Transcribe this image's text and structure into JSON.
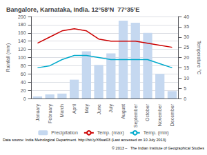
{
  "chart_data": {
    "type": "bar",
    "title": "Bangalore, Karnataka, India. 12°58’N  77°35’E",
    "categories": [
      "January",
      "February",
      "March",
      "April",
      "May",
      "June",
      "July",
      "August",
      "September",
      "October",
      "November",
      "December"
    ],
    "series": [
      {
        "name": "Precipitation",
        "type": "bar",
        "color": "#c5d8f0",
        "values": [
          5,
          10,
          12,
          46,
          115,
          82,
          110,
          190,
          185,
          160,
          60,
          18
        ]
      },
      {
        "name": "Temp. (max)",
        "type": "line",
        "axis": "y2",
        "color": "#cc0000",
        "values": [
          27,
          30,
          33,
          34,
          33,
          29,
          28,
          28,
          28,
          27,
          26,
          25
        ]
      },
      {
        "name": "Temp. (min)",
        "type": "line",
        "axis": "y2",
        "color": "#00aacc",
        "values": [
          15,
          16,
          19,
          21,
          21,
          20,
          19,
          19,
          19,
          19,
          17,
          15
        ]
      }
    ],
    "ylabel": "Rainfall (mm)",
    "y2label": "Temperature °C",
    "ylim": [
      0,
      200
    ],
    "yticks": [
      0,
      20,
      40,
      60,
      80,
      100,
      120,
      140,
      160,
      180,
      200
    ],
    "y2lim": [
      0,
      40
    ],
    "y2ticks": [
      0,
      5,
      10,
      15,
      20,
      25,
      30,
      35,
      40
    ],
    "grid": true,
    "legend": "bottom",
    "annotations": [
      "Data source: India Metrological Department. http://bit.ly/X6sat03 (Last accessed on 10 July 2013)",
      "© 2013 –   The Indian Institute of Geographical Studies"
    ]
  }
}
